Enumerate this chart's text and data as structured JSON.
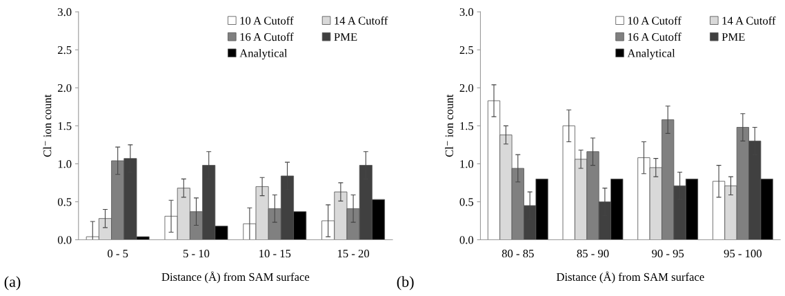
{
  "chart_data": [
    {
      "type": "bar",
      "xlabel": "Distance (Å) from SAM surface",
      "ylabel": "Cl⁻ ion count",
      "categories": [
        "0 - 5",
        "5 - 10",
        "10 - 15",
        "15 - 20"
      ],
      "ylim": [
        0,
        3.0
      ],
      "yticks": [
        {
          "value": 0,
          "label": "0.0"
        },
        {
          "value": 0.5,
          "label": "0.5"
        },
        {
          "value": 1.0,
          "label": "1.0"
        },
        {
          "value": 1.5,
          "label": "1.5"
        },
        {
          "value": 2.0,
          "label": "2.0"
        },
        {
          "value": 2.5,
          "label": "2.5"
        },
        {
          "value": 3.0,
          "label": "3.0"
        }
      ],
      "grid": false,
      "legend": "top right",
      "annotations": [
        "(a)"
      ],
      "series": [
        {
          "name": "10 A Cutoff",
          "color": "#ffffff",
          "values": [
            0.04,
            0.31,
            0.21,
            0.25
          ],
          "errors": [
            [
              0,
              0.24
            ],
            0.21,
            0.21,
            0.21
          ]
        },
        {
          "name": "14 A Cutoff",
          "color": "#d9d9d9",
          "values": [
            0.28,
            0.68,
            0.7,
            0.63
          ],
          "errors": [
            0.12,
            0.12,
            0.12,
            0.12
          ]
        },
        {
          "name": "16 A Cutoff",
          "color": "#808080",
          "values": [
            1.04,
            0.37,
            0.41,
            0.41
          ],
          "errors": [
            0.18,
            0.18,
            0.18,
            0.18
          ]
        },
        {
          "name": "PME",
          "color": "#404040",
          "values": [
            1.07,
            0.98,
            0.84,
            0.98
          ],
          "errors": [
            0.18,
            0.18,
            0.18,
            0.18
          ]
        },
        {
          "name": "Analytical",
          "color": "#000000",
          "values": [
            0.04,
            0.18,
            0.37,
            0.53
          ]
        }
      ]
    },
    {
      "type": "bar",
      "xlabel": "Distance (Å) from SAM surface",
      "ylabel": "Cl⁻ ion count",
      "categories": [
        "80 - 85",
        "85 - 90",
        "90 - 95",
        "95 - 100"
      ],
      "ylim": [
        0,
        3.0
      ],
      "yticks": [
        {
          "value": 0,
          "label": "0.0"
        },
        {
          "value": 0.5,
          "label": "0.5"
        },
        {
          "value": 1.0,
          "label": "1.0"
        },
        {
          "value": 1.5,
          "label": "1.5"
        },
        {
          "value": 2.0,
          "label": "2.0"
        },
        {
          "value": 2.5,
          "label": "2.5"
        },
        {
          "value": 3.0,
          "label": "3.0"
        }
      ],
      "grid": false,
      "legend": "top right",
      "annotations": [
        "(b)"
      ],
      "series": [
        {
          "name": "10 A Cutoff",
          "color": "#ffffff",
          "values": [
            1.83,
            1.5,
            1.08,
            0.77
          ],
          "errors": [
            0.21,
            0.21,
            0.21,
            0.21
          ]
        },
        {
          "name": "14 A Cutoff",
          "color": "#d9d9d9",
          "values": [
            1.38,
            1.06,
            0.95,
            0.71
          ],
          "errors": [
            0.12,
            0.12,
            0.12,
            0.12
          ]
        },
        {
          "name": "16 A Cutoff",
          "color": "#808080",
          "values": [
            0.94,
            1.16,
            1.58,
            1.48
          ],
          "errors": [
            0.18,
            0.18,
            0.18,
            0.18
          ]
        },
        {
          "name": "PME",
          "color": "#404040",
          "values": [
            0.45,
            0.5,
            0.71,
            1.3
          ],
          "errors": [
            0.18,
            0.18,
            0.18,
            0.18
          ]
        },
        {
          "name": "Analytical",
          "color": "#000000",
          "values": [
            0.8,
            0.8,
            0.8,
            0.8
          ]
        }
      ]
    }
  ]
}
